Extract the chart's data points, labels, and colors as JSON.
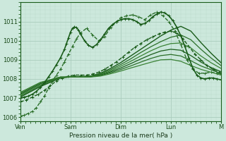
{
  "xlabel": "Pression niveau de la mer( hPa )",
  "xlim": [
    0,
    100
  ],
  "ylim": [
    1005.8,
    1011.8
  ],
  "yticks": [
    1006,
    1007,
    1008,
    1009,
    1010,
    1011
  ],
  "xtick_labels": [
    "Ven",
    "Sam",
    "Dim",
    "Lun",
    "M"
  ],
  "xtick_positions": [
    0,
    25,
    50,
    75,
    100
  ],
  "bg_color": "#cce8dc",
  "grid_color_major": "#aaccbc",
  "grid_color_minor": "#bbdacc",
  "curves": [
    {
      "x": [
        0,
        2,
        4,
        6,
        8,
        10,
        12,
        14,
        16,
        18,
        20,
        22,
        24,
        26,
        28,
        30,
        33,
        36,
        39,
        42,
        45,
        48,
        50,
        53,
        56,
        59,
        62,
        65,
        68,
        71,
        74,
        77,
        80,
        83,
        86,
        89,
        92,
        95,
        98,
        100
      ],
      "y": [
        1006.05,
        1006.1,
        1006.2,
        1006.3,
        1006.5,
        1006.8,
        1007.1,
        1007.5,
        1007.9,
        1008.2,
        1008.5,
        1008.9,
        1009.3,
        1009.7,
        1010.1,
        1010.4,
        1010.65,
        1010.3,
        1010.0,
        1010.2,
        1010.7,
        1011.0,
        1011.2,
        1011.3,
        1011.35,
        1011.25,
        1011.1,
        1011.35,
        1011.5,
        1011.3,
        1011.0,
        1010.5,
        1009.8,
        1009.0,
        1008.5,
        1008.3,
        1008.3,
        1008.35,
        1008.3,
        1008.25
      ],
      "style": "dashed_marker",
      "color": "#2a6e28",
      "lw": 1.0
    },
    {
      "x": [
        0,
        3,
        6,
        9,
        12,
        15,
        18,
        21,
        24,
        27,
        30,
        33,
        36,
        39,
        42,
        45,
        48,
        51,
        54,
        57,
        60,
        63,
        66,
        69,
        72,
        75,
        78,
        81,
        84,
        87,
        90,
        93,
        96,
        99,
        100
      ],
      "y": [
        1006.8,
        1006.9,
        1007.05,
        1007.2,
        1007.4,
        1007.65,
        1007.9,
        1008.05,
        1008.15,
        1008.2,
        1008.2,
        1008.2,
        1008.25,
        1008.35,
        1008.5,
        1008.7,
        1008.9,
        1009.15,
        1009.4,
        1009.65,
        1009.85,
        1010.05,
        1010.2,
        1010.35,
        1010.45,
        1010.5,
        1010.4,
        1010.1,
        1009.7,
        1009.3,
        1009.0,
        1008.7,
        1008.5,
        1008.35,
        1008.3
      ],
      "style": "dashed_marker",
      "color": "#1a5c1a",
      "lw": 1.0
    },
    {
      "x": [
        0,
        10,
        20,
        25,
        30,
        35,
        40,
        45,
        50,
        55,
        60,
        65,
        70,
        75,
        80,
        85,
        90,
        95,
        100
      ],
      "y": [
        1007.05,
        1007.6,
        1008.05,
        1008.1,
        1008.12,
        1008.15,
        1008.3,
        1008.55,
        1008.85,
        1009.2,
        1009.55,
        1009.9,
        1010.25,
        1010.55,
        1010.75,
        1010.5,
        1009.9,
        1009.35,
        1008.85
      ],
      "style": "solid",
      "color": "#1a5c1a",
      "lw": 1.0
    },
    {
      "x": [
        0,
        10,
        20,
        25,
        30,
        35,
        40,
        45,
        50,
        55,
        60,
        65,
        70,
        75,
        80,
        85,
        90,
        95,
        100
      ],
      "y": [
        1007.1,
        1007.65,
        1008.07,
        1008.1,
        1008.12,
        1008.14,
        1008.27,
        1008.48,
        1008.75,
        1009.05,
        1009.38,
        1009.68,
        1009.95,
        1010.18,
        1010.3,
        1010.05,
        1009.55,
        1009.1,
        1008.7
      ],
      "style": "solid",
      "color": "#2a6e28",
      "lw": 0.9
    },
    {
      "x": [
        0,
        10,
        20,
        25,
        30,
        35,
        40,
        45,
        50,
        55,
        60,
        65,
        70,
        75,
        80,
        85,
        90,
        95,
        100
      ],
      "y": [
        1007.15,
        1007.7,
        1008.08,
        1008.1,
        1008.11,
        1008.13,
        1008.24,
        1008.42,
        1008.66,
        1008.92,
        1009.2,
        1009.47,
        1009.7,
        1009.85,
        1009.88,
        1009.62,
        1009.2,
        1008.85,
        1008.55
      ],
      "style": "solid",
      "color": "#3a8235",
      "lw": 0.9
    },
    {
      "x": [
        0,
        10,
        20,
        25,
        30,
        35,
        40,
        45,
        50,
        55,
        60,
        65,
        70,
        75,
        80,
        85,
        90,
        95,
        100
      ],
      "y": [
        1007.2,
        1007.75,
        1008.09,
        1008.1,
        1008.11,
        1008.12,
        1008.21,
        1008.37,
        1008.57,
        1008.8,
        1009.04,
        1009.27,
        1009.46,
        1009.55,
        1009.5,
        1009.22,
        1008.88,
        1008.6,
        1008.38
      ],
      "style": "solid",
      "color": "#1a5c1a",
      "lw": 0.9
    },
    {
      "x": [
        0,
        10,
        20,
        25,
        30,
        35,
        40,
        45,
        50,
        55,
        60,
        65,
        70,
        75,
        80,
        85,
        90,
        95,
        100
      ],
      "y": [
        1007.25,
        1007.8,
        1008.1,
        1008.1,
        1008.1,
        1008.11,
        1008.18,
        1008.32,
        1008.49,
        1008.68,
        1008.88,
        1009.07,
        1009.22,
        1009.28,
        1009.2,
        1008.95,
        1008.68,
        1008.48,
        1008.28
      ],
      "style": "solid",
      "color": "#2a6e28",
      "lw": 0.9
    },
    {
      "x": [
        0,
        10,
        20,
        25,
        30,
        35,
        40,
        45,
        50,
        55,
        60,
        65,
        70,
        75,
        80,
        85,
        90,
        95,
        100
      ],
      "y": [
        1007.3,
        1007.82,
        1008.1,
        1008.1,
        1008.1,
        1008.1,
        1008.15,
        1008.27,
        1008.41,
        1008.57,
        1008.72,
        1008.87,
        1009.0,
        1009.02,
        1008.92,
        1008.7,
        1008.5,
        1008.35,
        1008.2
      ],
      "style": "solid",
      "color": "#3a8235",
      "lw": 0.9
    }
  ],
  "special_peak_curve": {
    "x": [
      0,
      2,
      4,
      6,
      8,
      10,
      12,
      14,
      16,
      18,
      20,
      22,
      23,
      24,
      25,
      26,
      27,
      28,
      29,
      30,
      32,
      34,
      36,
      38,
      40,
      42,
      44,
      46,
      48,
      50,
      52,
      54,
      56,
      58,
      60,
      62,
      64,
      66,
      68,
      70,
      72,
      74,
      76,
      78,
      80,
      82,
      84,
      86,
      88,
      90,
      92,
      94,
      96,
      98,
      100
    ],
    "y": [
      1007.0,
      1007.05,
      1007.1,
      1007.2,
      1007.35,
      1007.55,
      1007.8,
      1008.1,
      1008.4,
      1008.75,
      1009.1,
      1009.55,
      1009.85,
      1010.15,
      1010.45,
      1010.65,
      1010.72,
      1010.68,
      1010.55,
      1010.35,
      1010.0,
      1009.75,
      1009.65,
      1009.8,
      1010.05,
      1010.35,
      1010.65,
      1010.85,
      1011.0,
      1011.1,
      1011.15,
      1011.15,
      1011.1,
      1011.0,
      1010.85,
      1010.9,
      1011.05,
      1011.25,
      1011.4,
      1011.5,
      1011.45,
      1011.3,
      1011.05,
      1010.7,
      1010.25,
      1009.7,
      1009.1,
      1008.55,
      1008.2,
      1008.05,
      1008.0,
      1008.05,
      1008.05,
      1008.0,
      1007.95
    ],
    "color": "#1a5c1a",
    "lw": 1.2
  }
}
